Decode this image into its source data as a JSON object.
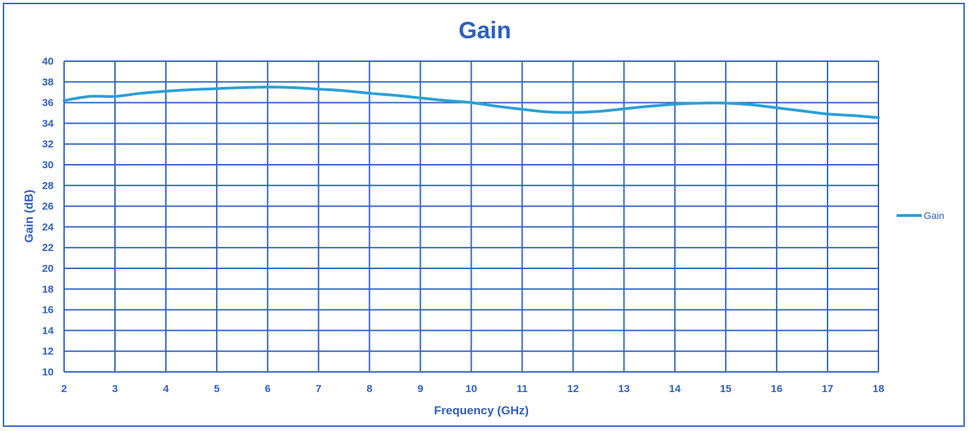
{
  "chart_data": {
    "type": "line",
    "title": "Gain",
    "xlabel": "Frequency (GHz)",
    "ylabel": "Gain (dB)",
    "xlim": [
      2,
      18
    ],
    "ylim": [
      10,
      40
    ],
    "x_ticks": [
      2,
      3,
      4,
      5,
      6,
      7,
      8,
      9,
      10,
      11,
      12,
      13,
      14,
      15,
      16,
      17,
      18
    ],
    "y_ticks": [
      10,
      12,
      14,
      16,
      18,
      20,
      22,
      24,
      26,
      28,
      30,
      32,
      34,
      36,
      38,
      40
    ],
    "grid": true,
    "legend_position": "right",
    "series": [
      {
        "name": "Gain",
        "color": "#2aa0d8",
        "x": [
          2,
          2.5,
          3,
          3.5,
          4,
          4.5,
          5,
          5.5,
          6,
          6.5,
          7,
          7.5,
          8,
          8.5,
          9,
          9.5,
          10,
          10.5,
          11,
          11.5,
          12,
          12.5,
          13,
          13.5,
          14,
          14.5,
          15,
          15.5,
          16,
          16.5,
          17,
          17.5,
          18
        ],
        "y": [
          36.2,
          36.6,
          36.6,
          36.9,
          37.1,
          37.25,
          37.35,
          37.45,
          37.5,
          37.45,
          37.3,
          37.15,
          36.9,
          36.7,
          36.45,
          36.2,
          36.0,
          35.65,
          35.35,
          35.1,
          35.05,
          35.15,
          35.4,
          35.65,
          35.85,
          35.95,
          35.95,
          35.8,
          35.5,
          35.2,
          34.9,
          34.75,
          34.55
        ]
      }
    ]
  },
  "colors": {
    "title": "#2f5fc0",
    "grid": "#2f63c4",
    "ticks": "#2f5fc0",
    "frame": "#2f63c4"
  }
}
